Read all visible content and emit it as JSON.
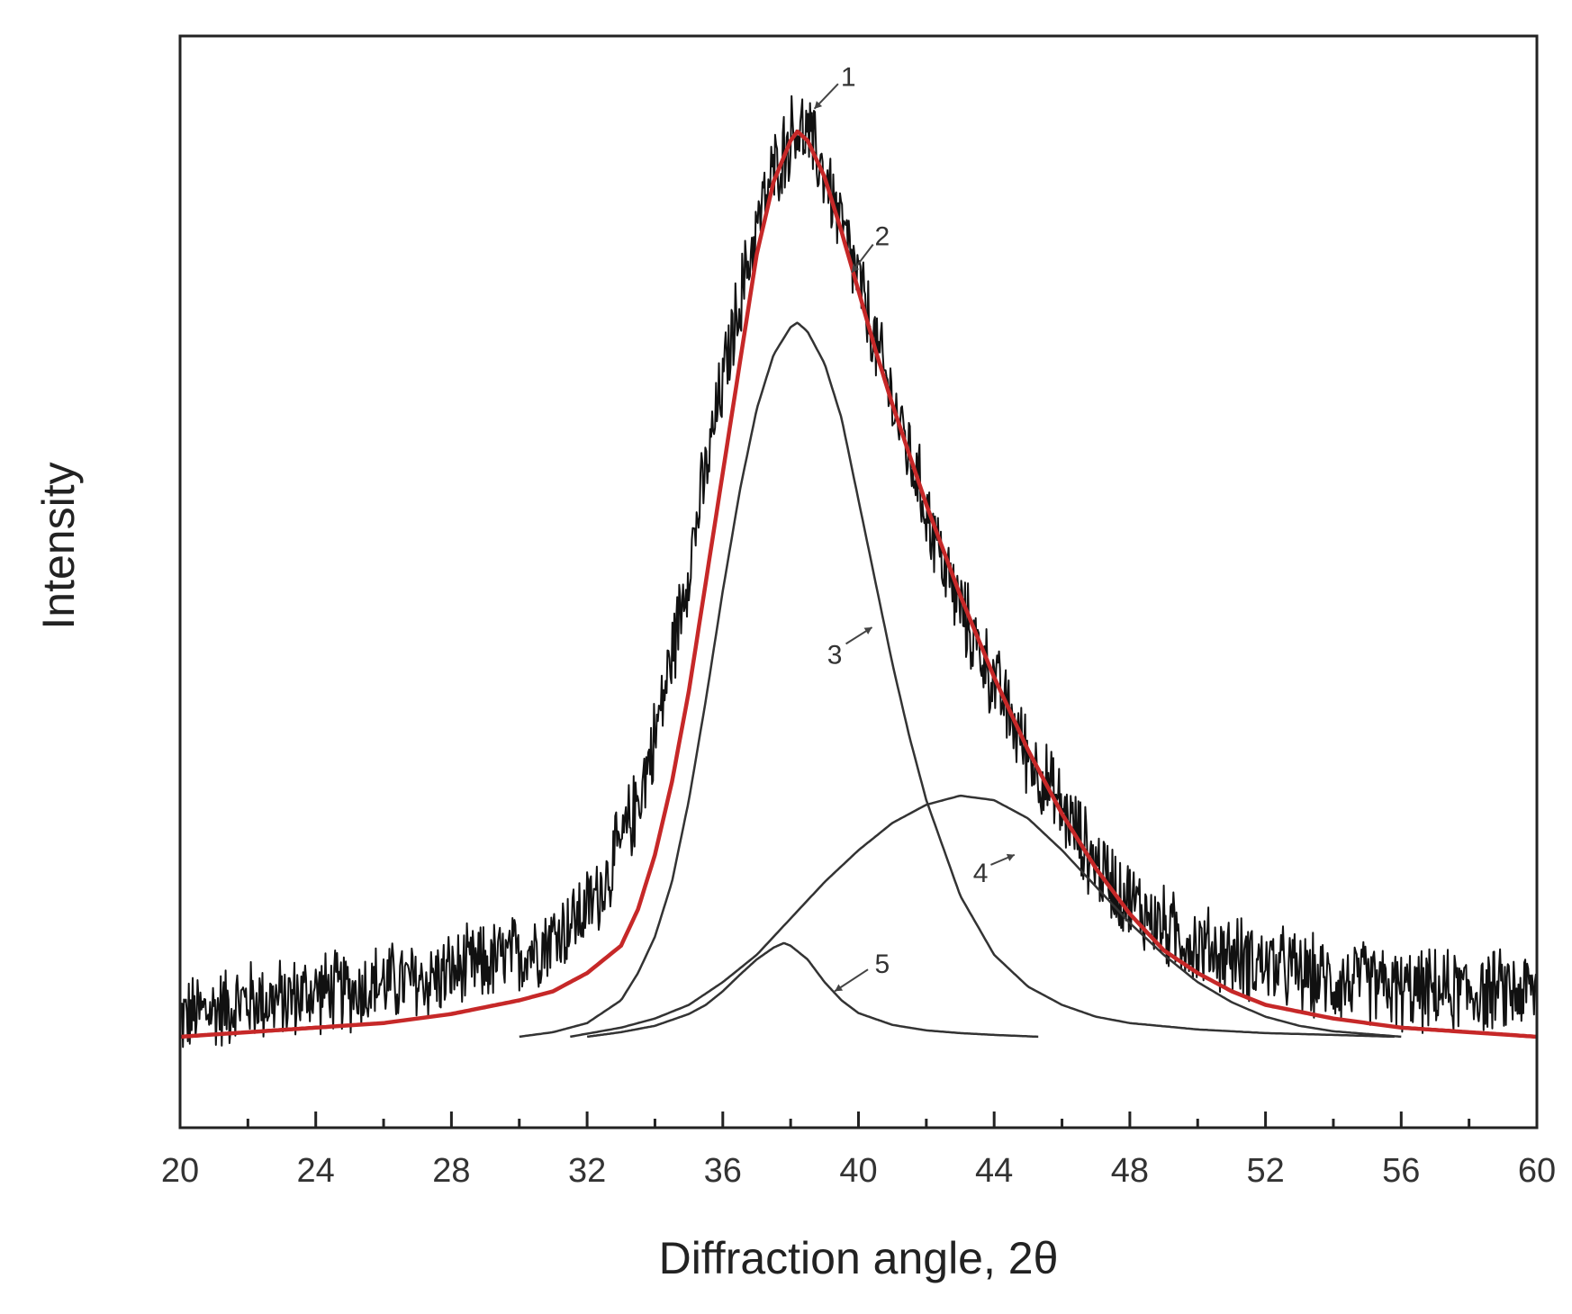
{
  "chart_data": {
    "type": "line",
    "title": "",
    "xlabel": "Diffraction angle, 2θ",
    "ylabel": "Intensity",
    "xlim": [
      20,
      60
    ],
    "ylim": [
      -0.1,
      1.1
    ],
    "x_ticks": [
      20,
      24,
      28,
      32,
      36,
      40,
      44,
      48,
      52,
      56,
      60
    ],
    "x_minor_step": 2,
    "y_ticks_shown": false,
    "grid": false,
    "legend": "none",
    "noise_amplitude": 0.04,
    "series": [
      {
        "name": "1",
        "kind": "measured",
        "color": "#111111",
        "x": [
          20,
          21,
          22,
          23,
          24,
          25,
          26,
          27,
          28,
          29,
          30,
          31,
          32,
          32.5,
          33,
          33.5,
          34,
          34.5,
          35,
          35.5,
          36,
          36.5,
          37,
          37.5,
          38,
          38.2,
          38.5,
          39,
          39.5,
          40,
          40.5,
          41,
          41.5,
          42,
          42.5,
          43,
          43.5,
          44,
          44.5,
          45,
          45.5,
          46,
          46.5,
          47,
          47.5,
          48,
          49,
          50,
          51,
          52,
          53,
          54,
          55,
          56,
          57,
          58,
          59,
          60
        ],
        "y": [
          0.02,
          0.03,
          0.04,
          0.04,
          0.05,
          0.05,
          0.06,
          0.06,
          0.07,
          0.08,
          0.09,
          0.11,
          0.14,
          0.17,
          0.21,
          0.26,
          0.33,
          0.42,
          0.52,
          0.62,
          0.72,
          0.81,
          0.89,
          0.95,
          0.99,
          1.0,
          0.99,
          0.95,
          0.89,
          0.83,
          0.76,
          0.7,
          0.64,
          0.58,
          0.52,
          0.47,
          0.43,
          0.39,
          0.35,
          0.31,
          0.28,
          0.25,
          0.22,
          0.19,
          0.17,
          0.15,
          0.12,
          0.1,
          0.09,
          0.08,
          0.07,
          0.06,
          0.06,
          0.05,
          0.05,
          0.05,
          0.05,
          0.05
        ]
      },
      {
        "name": "2",
        "kind": "fit",
        "color": "#c62828",
        "x": [
          20,
          22,
          24,
          26,
          28,
          30,
          31,
          32,
          33,
          33.5,
          34,
          34.5,
          35,
          35.5,
          36,
          36.5,
          37,
          37.5,
          38,
          38.2,
          38.5,
          39,
          39.5,
          40,
          40.5,
          41,
          41.5,
          42,
          43,
          44,
          45,
          46,
          47,
          48,
          49,
          50,
          51,
          52,
          54,
          56,
          58,
          60
        ],
        "y": [
          0.0,
          0.005,
          0.01,
          0.015,
          0.025,
          0.04,
          0.05,
          0.07,
          0.1,
          0.14,
          0.2,
          0.28,
          0.38,
          0.5,
          0.62,
          0.74,
          0.86,
          0.94,
          0.985,
          0.995,
          0.985,
          0.945,
          0.885,
          0.82,
          0.755,
          0.695,
          0.64,
          0.585,
          0.485,
          0.395,
          0.315,
          0.245,
          0.185,
          0.135,
          0.095,
          0.07,
          0.05,
          0.035,
          0.02,
          0.01,
          0.005,
          0.0
        ]
      },
      {
        "name": "3",
        "kind": "component",
        "color": "#333333",
        "x": [
          30,
          31,
          32,
          33,
          33.5,
          34,
          34.5,
          35,
          35.5,
          36,
          36.5,
          37,
          37.5,
          38,
          38.2,
          38.5,
          39,
          39.5,
          40,
          40.5,
          41,
          41.5,
          42,
          43,
          44,
          45,
          46,
          47,
          48,
          50,
          52,
          54,
          55.8
        ],
        "y": [
          0.0,
          0.005,
          0.015,
          0.04,
          0.07,
          0.11,
          0.17,
          0.26,
          0.37,
          0.49,
          0.6,
          0.69,
          0.75,
          0.78,
          0.785,
          0.775,
          0.74,
          0.68,
          0.59,
          0.5,
          0.41,
          0.33,
          0.26,
          0.155,
          0.09,
          0.055,
          0.035,
          0.022,
          0.015,
          0.008,
          0.004,
          0.002,
          0.0
        ]
      },
      {
        "name": "4",
        "kind": "component",
        "color": "#333333",
        "x": [
          31.5,
          33,
          34,
          35,
          36,
          37,
          38,
          39,
          40,
          41,
          42,
          43,
          44,
          45,
          46,
          47,
          48,
          49,
          50,
          51,
          52,
          53,
          54,
          55,
          56
        ],
        "y": [
          0.0,
          0.01,
          0.02,
          0.035,
          0.06,
          0.09,
          0.13,
          0.17,
          0.205,
          0.235,
          0.255,
          0.265,
          0.26,
          0.24,
          0.205,
          0.165,
          0.125,
          0.09,
          0.06,
          0.038,
          0.022,
          0.012,
          0.006,
          0.003,
          0.0
        ]
      },
      {
        "name": "5",
        "kind": "component",
        "color": "#333333",
        "x": [
          32,
          33,
          34,
          35,
          35.5,
          36,
          36.5,
          37,
          37.5,
          37.8,
          38,
          38.5,
          39,
          39.5,
          40,
          41,
          42,
          43,
          44,
          45.3
        ],
        "y": [
          0.0,
          0.005,
          0.012,
          0.025,
          0.035,
          0.05,
          0.068,
          0.085,
          0.098,
          0.103,
          0.1,
          0.085,
          0.06,
          0.04,
          0.026,
          0.013,
          0.007,
          0.004,
          0.002,
          0.0
        ]
      }
    ],
    "annotations": [
      {
        "text": "1",
        "x": 39.7,
        "y": 1.045,
        "arrow_to_x": 38.7,
        "arrow_to_y": 1.02
      },
      {
        "text": "2",
        "x": 40.7,
        "y": 0.87,
        "arrow_to_x": 39.8,
        "arrow_to_y": 0.84
      },
      {
        "text": "3",
        "x": 39.3,
        "y": 0.41,
        "arrow_to_x": 40.4,
        "arrow_to_y": 0.45
      },
      {
        "text": "4",
        "x": 43.6,
        "y": 0.17,
        "arrow_to_x": 44.6,
        "arrow_to_y": 0.2
      },
      {
        "text": "5",
        "x": 40.7,
        "y": 0.07,
        "arrow_to_x": 39.3,
        "arrow_to_y": 0.05
      }
    ]
  }
}
